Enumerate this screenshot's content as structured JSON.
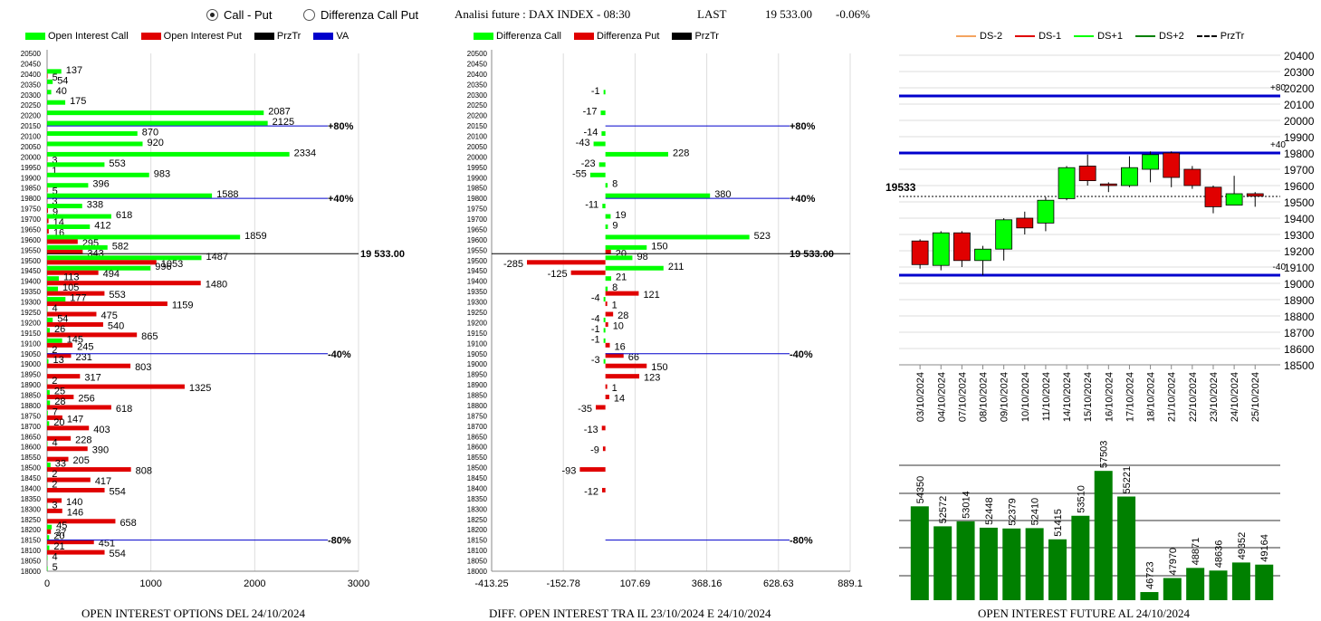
{
  "header": {
    "radio_call_put": "Call - Put",
    "radio_diff": "Differenza Call Put",
    "title": "Analisi future : DAX INDEX - 08:30",
    "last_label": "LAST",
    "last_value": "19 533.00",
    "change": "-0.06%"
  },
  "legend1": {
    "oi_call": "Open Interest Call",
    "oi_put": "Open Interest Put",
    "przt": "PrzTr",
    "va": "VA"
  },
  "legend2": {
    "diff_call": "Differenza Call",
    "diff_put": "Differenza Put",
    "przt": "PrzTr"
  },
  "legend3": {
    "ds_m2": "DS-2",
    "ds_m1": "DS-1",
    "ds_p1": "DS+1",
    "ds_p2": "DS+2",
    "przt": "PrzTr"
  },
  "captions": {
    "c1": "OPEN INTEREST OPTIONS DEL 24/10/2024",
    "c2": "DIFF. OPEN INTEREST TRA IL 23/10/2024 E 24/10/2024",
    "c3": "OPEN INTEREST FUTURE AL 24/10/2024"
  },
  "colors": {
    "green": "#00ff00",
    "red": "#e00000",
    "blue": "#0000cc",
    "darkgreen": "#008000"
  },
  "chart_data": [
    {
      "type": "bar",
      "orientation": "horizontal",
      "strikes": [
        20500,
        20450,
        20400,
        20350,
        20300,
        20250,
        20200,
        20150,
        20100,
        20050,
        20000,
        19950,
        19900,
        19850,
        19800,
        19750,
        19700,
        19650,
        19600,
        19550,
        19500,
        19450,
        19400,
        19350,
        19300,
        19250,
        19200,
        19150,
        19100,
        19050,
        19000,
        18950,
        18900,
        18850,
        18800,
        18750,
        18700,
        18650,
        18600,
        18550,
        18500,
        18450,
        18400,
        18350,
        18300,
        18250,
        18200,
        18150,
        18100,
        18050,
        18000
      ],
      "series": [
        {
          "name": "Open Interest Call",
          "values": [
            0,
            0,
            137,
            54,
            40,
            175,
            2087,
            2125,
            870,
            920,
            2334,
            553,
            983,
            396,
            1588,
            338,
            618,
            412,
            1859,
            582,
            1487,
            996,
            113,
            105,
            177,
            4,
            54,
            26,
            145,
            2,
            13,
            0,
            2,
            25,
            28,
            7,
            20,
            0,
            4,
            0,
            33,
            2,
            2,
            0,
            3,
            0,
            45,
            20,
            21,
            4,
            5
          ]
        },
        {
          "name": "Open Interest Put",
          "values": [
            0,
            0,
            5,
            0,
            0,
            0,
            0,
            0,
            0,
            0,
            3,
            1,
            0,
            5,
            3,
            9,
            14,
            16,
            295,
            343,
            1053,
            494,
            1480,
            553,
            1159,
            475,
            540,
            865,
            245,
            231,
            803,
            317,
            1325,
            256,
            618,
            147,
            403,
            228,
            390,
            205,
            808,
            417,
            554,
            140,
            146,
            658,
            37,
            451,
            554,
            0,
            0
          ]
        }
      ],
      "ref_lines": [
        {
          "label": "+80%",
          "strike": 20150
        },
        {
          "label": "+40%",
          "strike": 19800
        },
        {
          "label": "19 533.00",
          "strike": 19533
        },
        {
          "label": "-40%",
          "strike": 19050
        },
        {
          "label": "-80%",
          "strike": 18150
        }
      ],
      "xlim": [
        0,
        3000
      ],
      "xticks": [
        "0",
        "1000",
        "2000",
        "3000"
      ]
    },
    {
      "type": "bar",
      "orientation": "horizontal",
      "strikes": [
        20500,
        20450,
        20400,
        20350,
        20300,
        20250,
        20200,
        20150,
        20100,
        20050,
        20000,
        19950,
        19900,
        19850,
        19800,
        19750,
        19700,
        19650,
        19600,
        19550,
        19500,
        19450,
        19400,
        19350,
        19300,
        19250,
        19200,
        19150,
        19100,
        19050,
        19000,
        18950,
        18900,
        18850,
        18800,
        18750,
        18700,
        18650,
        18600,
        18550,
        18500,
        18450,
        18400,
        18350,
        18300,
        18250,
        18200,
        18150,
        18100,
        18050,
        18000
      ],
      "series": [
        {
          "name": "Differenza Call",
          "values": [
            null,
            null,
            null,
            null,
            -1,
            null,
            -17,
            null,
            -14,
            -43,
            228,
            -23,
            -55,
            8,
            380,
            -11,
            19,
            9,
            523,
            150,
            98,
            211,
            21,
            8,
            -4,
            null,
            -4,
            -1,
            -1,
            null,
            -3,
            null,
            null,
            null,
            null,
            null,
            null,
            null,
            null,
            null,
            null,
            null,
            null,
            null,
            null,
            null,
            null,
            null,
            null,
            null,
            null
          ]
        },
        {
          "name": "Differenza Put",
          "values": [
            null,
            null,
            null,
            null,
            null,
            null,
            null,
            null,
            null,
            null,
            null,
            null,
            null,
            null,
            null,
            null,
            null,
            null,
            null,
            20,
            -285,
            -125,
            null,
            121,
            1,
            28,
            10,
            null,
            16,
            66,
            150,
            123,
            1,
            14,
            -35,
            null,
            -13,
            null,
            -9,
            null,
            -93,
            null,
            -12,
            null,
            null,
            null,
            null,
            null,
            null,
            null,
            null
          ]
        }
      ],
      "ref_lines": [
        {
          "label": "+80%",
          "strike": 20150
        },
        {
          "label": "+40%",
          "strike": 19800
        },
        {
          "label": "19 533.00",
          "strike": 19533
        },
        {
          "label": "-40%",
          "strike": 19050
        },
        {
          "label": "-80%",
          "strike": 18150
        }
      ],
      "xlim": [
        -413.25,
        889.1
      ],
      "xticks": [
        "-413.25",
        "-152.78",
        "107.69",
        "368.16",
        "628.63",
        "889.1"
      ]
    },
    {
      "type": "candlestick",
      "dates": [
        "03/10/2024",
        "04/10/2024",
        "07/10/2024",
        "08/10/2024",
        "09/10/2024",
        "10/10/2024",
        "11/10/2024",
        "14/10/2024",
        "15/10/2024",
        "16/10/2024",
        "17/10/2024",
        "18/10/2024",
        "21/10/2024",
        "22/10/2024",
        "23/10/2024",
        "24/10/2024",
        "25/10/2024"
      ],
      "candles": [
        {
          "o": 19260,
          "c": 19115,
          "h": 19270,
          "l": 19090
        },
        {
          "o": 19110,
          "c": 19310,
          "h": 19320,
          "l": 19080
        },
        {
          "o": 19310,
          "c": 19140,
          "h": 19320,
          "l": 19100
        },
        {
          "o": 19140,
          "c": 19210,
          "h": 19230,
          "l": 19050
        },
        {
          "o": 19210,
          "c": 19390,
          "h": 19400,
          "l": 19140
        },
        {
          "o": 19400,
          "c": 19340,
          "h": 19440,
          "l": 19300
        },
        {
          "o": 19370,
          "c": 19510,
          "h": 19530,
          "l": 19320
        },
        {
          "o": 19520,
          "c": 19710,
          "h": 19720,
          "l": 19510
        },
        {
          "o": 19720,
          "c": 19630,
          "h": 19790,
          "l": 19600
        },
        {
          "o": 19610,
          "c": 19600,
          "h": 19620,
          "l": 19560
        },
        {
          "o": 19600,
          "c": 19710,
          "h": 19780,
          "l": 19590
        },
        {
          "o": 19700,
          "c": 19790,
          "h": 19810,
          "l": 19620
        },
        {
          "o": 19800,
          "c": 19650,
          "h": 19810,
          "l": 19590
        },
        {
          "o": 19700,
          "c": 19600,
          "h": 19720,
          "l": 19580
        },
        {
          "o": 19590,
          "c": 19470,
          "h": 19600,
          "l": 19430
        },
        {
          "o": 19480,
          "c": 19550,
          "h": 19660,
          "l": 19480
        },
        {
          "o": 19550,
          "c": 19535,
          "h": 19560,
          "l": 19470
        }
      ],
      "lines": [
        {
          "label": "+80",
          "value": 20150
        },
        {
          "label": "+40",
          "value": 19800
        },
        {
          "label": "-40",
          "value": 19050
        }
      ],
      "przt": "19533",
      "ylim": [
        18500,
        20400
      ],
      "yticks": [
        20400,
        20300,
        20200,
        20100,
        20000,
        19900,
        19800,
        19700,
        19600,
        19500,
        19400,
        19300,
        19200,
        19100,
        19000,
        18900,
        18800,
        18700,
        18600,
        18500
      ]
    },
    {
      "type": "bar",
      "values": [
        54350,
        52572,
        53014,
        52448,
        52379,
        52410,
        51415,
        53510,
        57503,
        55221,
        46723,
        47970,
        48871,
        48636,
        49352,
        49164
      ],
      "ylim": [
        46000,
        58000
      ]
    }
  ]
}
